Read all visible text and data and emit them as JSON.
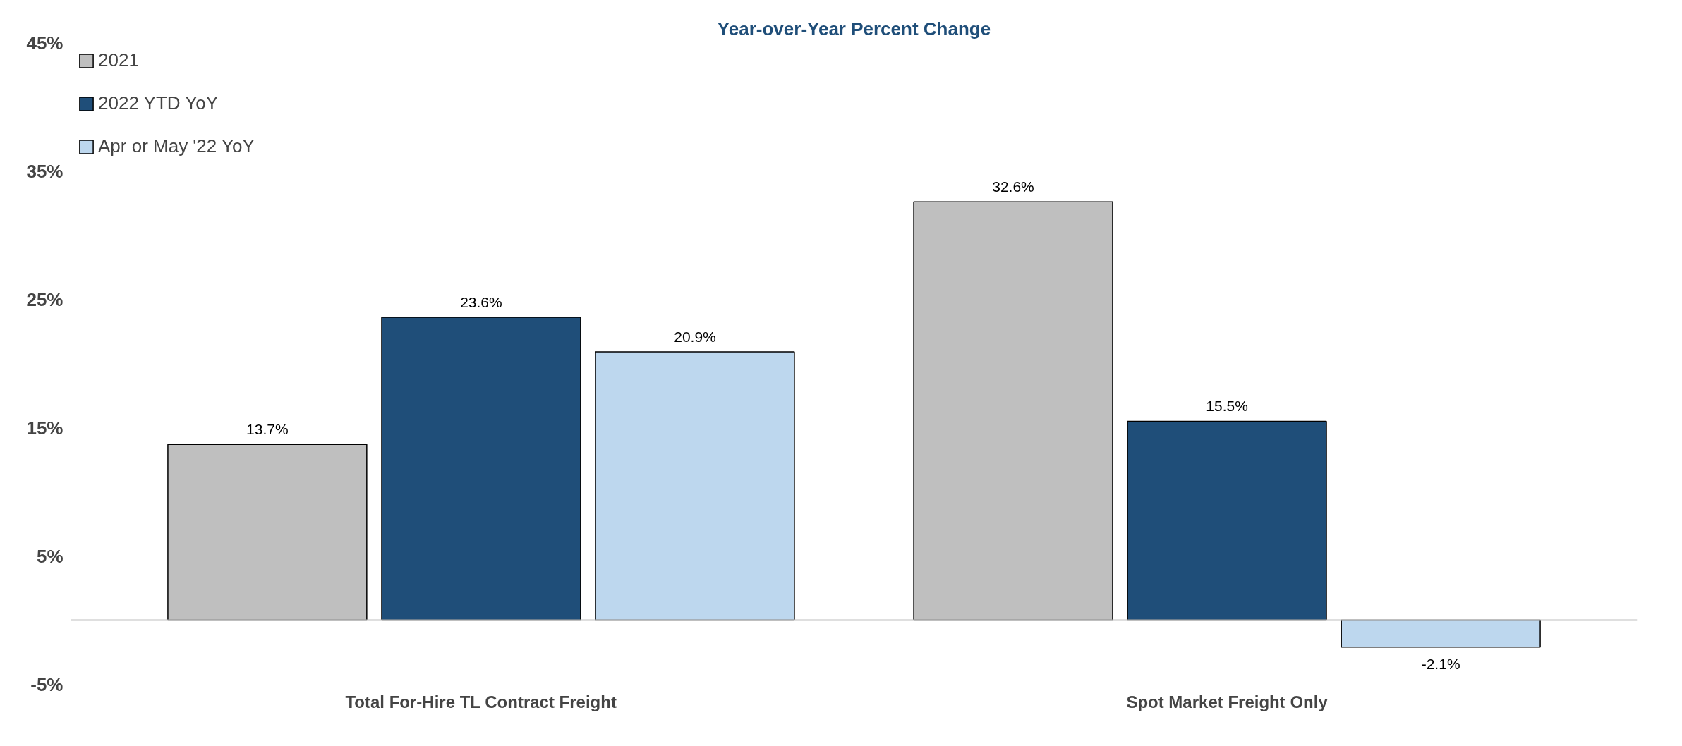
{
  "chart_data": {
    "type": "bar",
    "title": "Year-over-Year Percent Change",
    "categories": [
      "Total For-Hire TL Contract Freight",
      "Spot Market Freight Only"
    ],
    "series": [
      {
        "name": "2021",
        "color": "#bfbfbf",
        "values": [
          13.7,
          32.6
        ]
      },
      {
        "name": "2022 YTD YoY",
        "color": "#1f4e79",
        "values": [
          23.6,
          15.5
        ]
      },
      {
        "name": "Apr or May '22 YoY",
        "color": "#bdd7ee",
        "values": [
          20.9,
          -2.1
        ]
      }
    ],
    "ylim": [
      -5,
      45
    ],
    "yticks": [
      {
        "value": -5,
        "label": "-5%"
      },
      {
        "value": 5,
        "label": "5%"
      },
      {
        "value": 15,
        "label": "15%"
      },
      {
        "value": 25,
        "label": "25%"
      },
      {
        "value": 35,
        "label": "35%"
      },
      {
        "value": 45,
        "label": "45%"
      }
    ],
    "value_labels": [
      [
        "13.7%",
        "32.6%"
      ],
      [
        "23.6%",
        "15.5%"
      ],
      [
        "20.9%",
        "-2.1%"
      ]
    ],
    "legend": "top left",
    "grid": false
  }
}
